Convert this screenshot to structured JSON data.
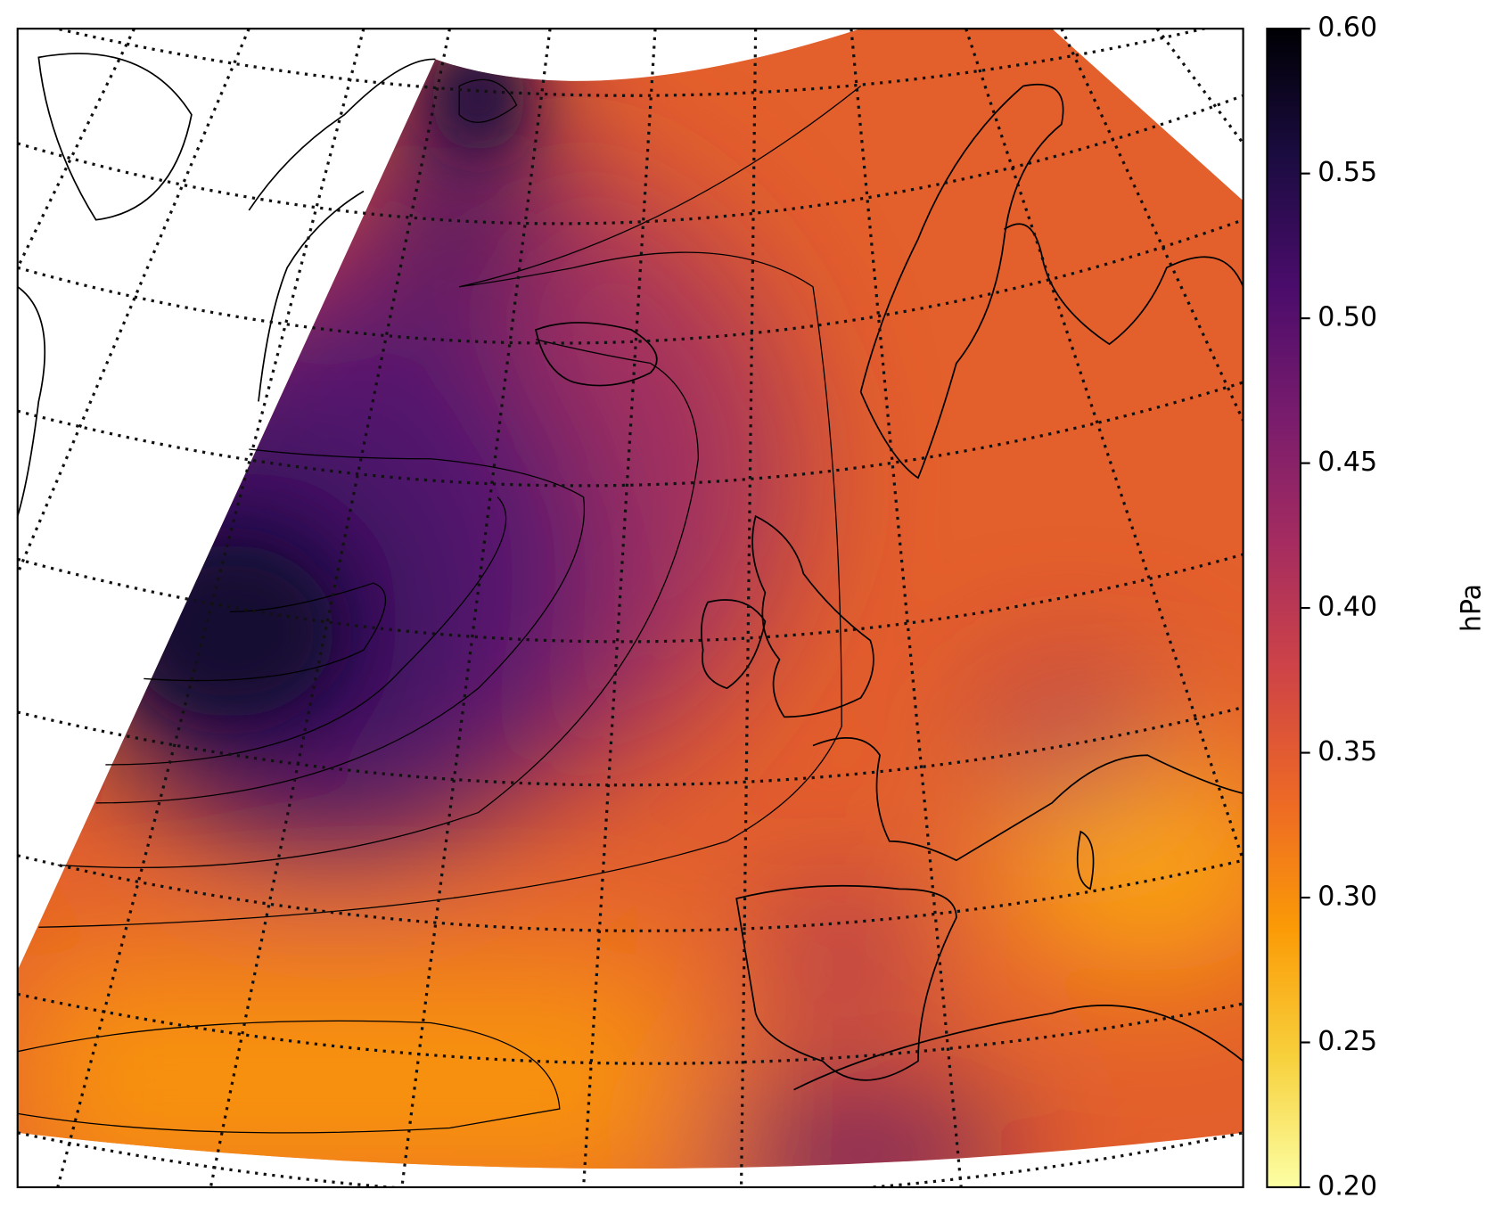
{
  "chart_data": {
    "type": "colormap",
    "colormap": "inferno",
    "colorbar_label": "hPa",
    "clim": [
      0.2,
      0.6
    ],
    "cticks": [
      {
        "value": 0.2,
        "label": "0.20"
      },
      {
        "value": 0.25,
        "label": "0.25"
      },
      {
        "value": 0.3,
        "label": "0.30"
      },
      {
        "value": 0.35,
        "label": "0.35"
      },
      {
        "value": 0.4,
        "label": "0.40"
      },
      {
        "value": 0.45,
        "label": "0.45"
      },
      {
        "value": 0.5,
        "label": "0.50"
      },
      {
        "value": 0.55,
        "label": "0.55"
      },
      {
        "value": 0.6,
        "label": "0.60"
      }
    ]
  }
}
